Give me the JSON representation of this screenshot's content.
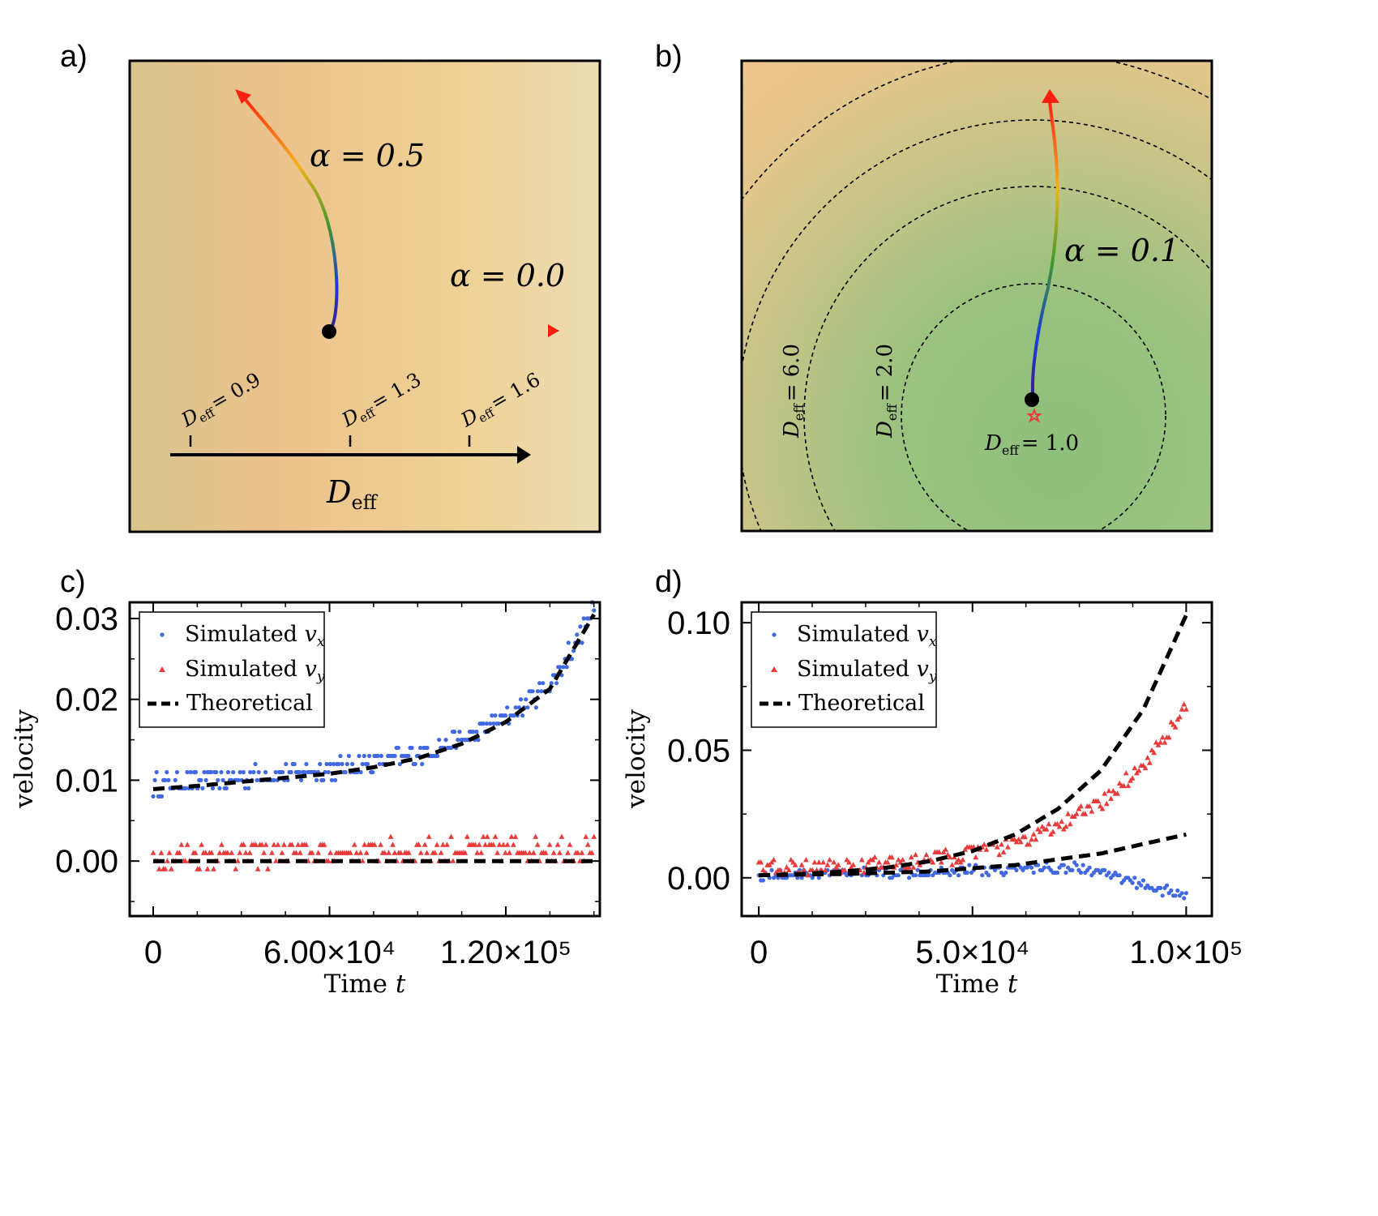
{
  "figure": {
    "panel_a": {
      "label": "a)",
      "alpha_top": "α = 0.5",
      "alpha_right": "α = 0.0",
      "markers": [
        {
          "label": "D",
          "sub": "eff",
          "value": "= 0.9"
        },
        {
          "label": "D",
          "sub": "eff",
          "value": "= 1.3"
        },
        {
          "label": "D",
          "sub": "eff",
          "value": "= 1.6"
        }
      ],
      "axis_label": "D",
      "axis_sub": "eff"
    },
    "panel_b": {
      "label": "b)",
      "alpha": "α = 0.1",
      "contours": [
        {
          "label": "D",
          "sub": "eff",
          "value": "= 6.0"
        },
        {
          "label": "D",
          "sub": "eff",
          "value": "= 2.0"
        },
        {
          "label": "D",
          "sub": "eff",
          "value": "= 1.0"
        }
      ]
    }
  },
  "colors": {
    "vx": "#4169e1",
    "vy": "#e83b3b",
    "theory": "#000000",
    "bg_warm": "#ecc78c",
    "bg_green": "#8fbf7e"
  },
  "chart_data": [
    {
      "id": "c",
      "panel_label": "c)",
      "type": "scatter",
      "xlabel": "Time",
      "xlabel_var": "t",
      "ylabel": "velocity",
      "xlim": [
        -8000,
        152000
      ],
      "ylim": [
        -0.0068,
        0.032
      ],
      "xticks": [
        0,
        60000,
        120000
      ],
      "xtick_labels": [
        "0",
        "6.00×10⁴",
        "1.20×10⁵"
      ],
      "yticks": [
        0.0,
        0.01,
        0.02,
        0.03
      ],
      "ytick_labels": [
        "0.00",
        "0.01",
        "0.02",
        "0.03"
      ],
      "legend": [
        {
          "label": "Simulated ",
          "var": "v",
          "sub": "x",
          "kind": "circle"
        },
        {
          "label": "Simulated ",
          "var": "v",
          "sub": "y",
          "kind": "triangle"
        },
        {
          "label": "Theoretical",
          "kind": "dashed"
        }
      ],
      "series": [
        {
          "name": "Simulated v_x",
          "marker": "circle",
          "x_max": 150000,
          "n": 260,
          "trend": "0.009 + 0.0000000000000089*x^3 approx",
          "noise": 0.0012
        },
        {
          "name": "Simulated v_y",
          "marker": "triangle",
          "x_max": 150000,
          "n": 220,
          "trend": "0.0008 + 0.000000009*x",
          "noise": 0.0015
        },
        {
          "name": "Theoretical v_x",
          "marker": "dashed",
          "x": [
            0,
            15000,
            30000,
            45000,
            60000,
            75000,
            90000,
            105000,
            120000,
            135000,
            150000
          ],
          "values": [
            0.0089,
            0.0093,
            0.0098,
            0.0103,
            0.0108,
            0.0116,
            0.0127,
            0.0145,
            0.0172,
            0.0213,
            0.0305
          ]
        },
        {
          "name": "Theoretical v_y",
          "marker": "dashed",
          "x": [
            0,
            150000
          ],
          "values": [
            0.0,
            0.0
          ]
        }
      ]
    },
    {
      "id": "d",
      "panel_label": "d)",
      "type": "scatter",
      "xlabel": "Time",
      "xlabel_var": "t",
      "ylabel": "velocity",
      "xlim": [
        -4000,
        106000
      ],
      "ylim": [
        -0.015,
        0.108
      ],
      "xticks": [
        0,
        50000,
        100000
      ],
      "xtick_labels": [
        "0",
        "5.0×10⁴",
        "1.0×10⁵"
      ],
      "yticks": [
        0.0,
        0.05,
        0.1
      ],
      "ytick_labels": [
        "0.00",
        "0.05",
        "0.10"
      ],
      "legend": [
        {
          "label": "Simulated ",
          "var": "v",
          "sub": "x",
          "kind": "circle"
        },
        {
          "label": "Simulated ",
          "var": "v",
          "sub": "y",
          "kind": "triangle"
        },
        {
          "label": "Theoretical",
          "kind": "dashed"
        }
      ],
      "series": [
        {
          "name": "Simulated v_x",
          "marker": "circle",
          "x_max": 100000,
          "n": 200,
          "trend": "~0 with rise to 0.004 then drop to -0.009",
          "noise": 0.002
        },
        {
          "name": "Simulated v_y",
          "marker": "triangle",
          "x_max": 100000,
          "n": 200,
          "trend": "exponential growth to 0.065",
          "noise": 0.003
        },
        {
          "name": "Theoretical v_y",
          "marker": "dashed",
          "x": [
            0,
            10000,
            20000,
            30000,
            40000,
            50000,
            60000,
            70000,
            80000,
            90000,
            100000
          ],
          "values": [
            0.001,
            0.0015,
            0.0025,
            0.004,
            0.0065,
            0.0105,
            0.017,
            0.027,
            0.042,
            0.066,
            0.103
          ]
        },
        {
          "name": "Theoretical v_x",
          "marker": "dashed",
          "x": [
            0,
            20000,
            40000,
            60000,
            80000,
            100000
          ],
          "values": [
            0.001,
            0.0015,
            0.0025,
            0.005,
            0.0095,
            0.017
          ]
        }
      ]
    }
  ]
}
